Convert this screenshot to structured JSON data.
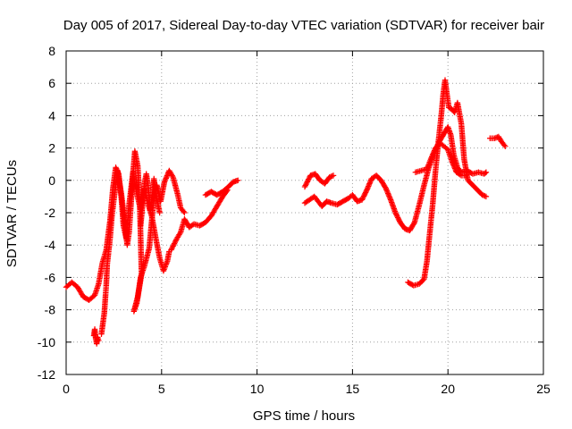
{
  "chart_data": {
    "type": "scatter",
    "title": "Day 005 of 2017, Sidereal Day-to-day VTEC variation (SDTVAR) for receiver bair",
    "xlabel": "GPS time / hours",
    "ylabel": "SDTVAR / TECUs",
    "xlim": [
      0,
      25
    ],
    "ylim": [
      -12,
      8
    ],
    "xticks": [
      0,
      5,
      10,
      15,
      20,
      25
    ],
    "yticks": [
      -12,
      -10,
      -8,
      -6,
      -4,
      -2,
      0,
      2,
      4,
      6,
      8
    ],
    "grid": true,
    "marker": "plus",
    "color": "#ff0000",
    "segments": [
      [
        [
          0.0,
          -6.6
        ],
        [
          0.3,
          -6.3
        ],
        [
          0.6,
          -6.6
        ],
        [
          0.9,
          -7.2
        ],
        [
          1.2,
          -7.4
        ],
        [
          1.5,
          -7.1
        ],
        [
          1.7,
          -6.4
        ],
        [
          1.9,
          -5.1
        ],
        [
          2.1,
          -4.3
        ],
        [
          2.3,
          -2.5
        ],
        [
          2.45,
          -0.5
        ],
        [
          2.6,
          0.8
        ],
        [
          2.75,
          0.4
        ],
        [
          2.9,
          -1.2
        ],
        [
          3.0,
          -2.8
        ],
        [
          3.15,
          -3.6
        ],
        [
          3.3,
          -1.5
        ],
        [
          3.5,
          0.5
        ],
        [
          3.7,
          -0.8
        ],
        [
          3.9,
          -1.8
        ],
        [
          4.1,
          -0.5
        ],
        [
          4.3,
          -1.5
        ],
        [
          4.5,
          -2.3
        ],
        [
          4.7,
          -3.6
        ],
        [
          4.9,
          -4.8
        ],
        [
          5.1,
          -5.6
        ],
        [
          5.3,
          -5.0
        ],
        [
          5.4,
          -4.4
        ]
      ],
      [
        [
          1.45,
          -9.6
        ],
        [
          1.5,
          -9.2
        ],
        [
          1.55,
          -9.8
        ],
        [
          1.6,
          -10.1
        ],
        [
          1.65,
          -9.7
        ],
        [
          1.7,
          -9.9
        ]
      ],
      [
        [
          1.85,
          -9.5
        ],
        [
          2.0,
          -8.2
        ],
        [
          2.1,
          -6.5
        ],
        [
          2.15,
          -5.2
        ],
        [
          2.3,
          -3.6
        ],
        [
          2.4,
          -2.2
        ],
        [
          2.5,
          -1.2
        ],
        [
          2.7,
          0.6
        ],
        [
          2.9,
          -0.9
        ],
        [
          3.05,
          -2.4
        ],
        [
          3.2,
          -4.0
        ],
        [
          3.3,
          -3.2
        ],
        [
          3.4,
          -1.4
        ],
        [
          3.5,
          0.4
        ],
        [
          3.6,
          1.8
        ],
        [
          3.75,
          0.9
        ],
        [
          3.85,
          -1.3
        ],
        [
          3.9,
          -3.4
        ],
        [
          3.95,
          -5.8
        ],
        [
          3.7,
          -7.6
        ],
        [
          3.55,
          -8.1
        ],
        [
          3.75,
          -7.2
        ],
        [
          3.9,
          -6.0
        ],
        [
          4.1,
          -5.3
        ],
        [
          4.35,
          -4.2
        ],
        [
          4.5,
          -2.3
        ],
        [
          4.6,
          -1.0
        ],
        [
          4.75,
          -0.3
        ],
        [
          4.95,
          -1.3
        ],
        [
          5.15,
          -0.1
        ],
        [
          5.4,
          0.6
        ],
        [
          5.6,
          0.2
        ],
        [
          5.85,
          -0.9
        ],
        [
          6.0,
          -1.7
        ],
        [
          6.2,
          -2.0
        ]
      ],
      [
        [
          3.9,
          -2.8
        ],
        [
          4.0,
          -1.6
        ],
        [
          4.1,
          -0.2
        ],
        [
          4.2,
          0.4
        ],
        [
          4.3,
          -0.4
        ],
        [
          4.4,
          -1.8
        ],
        [
          4.5,
          -1.2
        ],
        [
          4.6,
          0.1
        ],
        [
          4.7,
          -0.9
        ],
        [
          4.9,
          -2.0
        ]
      ],
      [
        [
          5.5,
          -4.3
        ],
        [
          5.8,
          -3.6
        ],
        [
          6.0,
          -3.2
        ],
        [
          6.2,
          -2.4
        ],
        [
          6.45,
          -2.9
        ],
        [
          6.7,
          -2.7
        ],
        [
          7.0,
          -2.8
        ],
        [
          7.3,
          -2.6
        ],
        [
          7.6,
          -2.2
        ],
        [
          7.9,
          -1.6
        ],
        [
          8.2,
          -1.0
        ],
        [
          8.45,
          -0.6
        ]
      ],
      [
        [
          7.3,
          -0.9
        ],
        [
          7.6,
          -0.7
        ],
        [
          7.9,
          -0.9
        ],
        [
          8.2,
          -0.7
        ],
        [
          8.5,
          -0.4
        ],
        [
          8.75,
          -0.1
        ],
        [
          9.0,
          0.0
        ]
      ],
      [
        [
          12.5,
          -1.4
        ],
        [
          12.75,
          -1.2
        ],
        [
          13.0,
          -1.0
        ],
        [
          13.2,
          -1.3
        ],
        [
          13.4,
          -1.6
        ],
        [
          13.65,
          -1.3
        ],
        [
          13.9,
          -1.4
        ],
        [
          14.2,
          -1.5
        ],
        [
          14.5,
          -1.3
        ],
        [
          14.8,
          -1.1
        ],
        [
          15.0,
          -0.9
        ],
        [
          15.25,
          -1.3
        ],
        [
          15.5,
          -1.2
        ],
        [
          15.75,
          -0.6
        ],
        [
          16.0,
          0.1
        ],
        [
          16.25,
          0.3
        ],
        [
          16.5,
          0.0
        ],
        [
          16.75,
          -0.5
        ],
        [
          17.0,
          -1.2
        ],
        [
          17.25,
          -2.0
        ],
        [
          17.5,
          -2.6
        ],
        [
          17.75,
          -3.0
        ],
        [
          18.0,
          -3.1
        ],
        [
          18.25,
          -2.6
        ],
        [
          18.5,
          -1.5
        ],
        [
          18.75,
          -0.3
        ],
        [
          19.0,
          0.8
        ],
        [
          19.25,
          1.6
        ],
        [
          19.5,
          2.3
        ],
        [
          19.75,
          2.8
        ],
        [
          20.0,
          3.3
        ],
        [
          20.15,
          2.8
        ],
        [
          20.3,
          1.6
        ],
        [
          20.5,
          0.8
        ],
        [
          20.7,
          0.5
        ],
        [
          21.0,
          0.6
        ],
        [
          21.3,
          0.4
        ],
        [
          21.6,
          0.5
        ],
        [
          21.9,
          0.4
        ],
        [
          22.0,
          0.5
        ]
      ],
      [
        [
          12.5,
          -0.4
        ],
        [
          12.8,
          0.3
        ],
        [
          13.05,
          0.4
        ],
        [
          13.3,
          0.0
        ],
        [
          13.55,
          -0.2
        ],
        [
          13.8,
          0.2
        ],
        [
          14.0,
          0.3
        ]
      ],
      [
        [
          17.9,
          -6.3
        ],
        [
          18.2,
          -6.5
        ],
        [
          18.5,
          -6.4
        ],
        [
          18.75,
          -6.1
        ],
        [
          18.9,
          -5.0
        ],
        [
          19.0,
          -3.8
        ],
        [
          19.2,
          -1.5
        ],
        [
          19.35,
          0.6
        ],
        [
          19.5,
          2.4
        ],
        [
          19.65,
          4.0
        ],
        [
          19.75,
          5.3
        ],
        [
          19.85,
          6.2
        ],
        [
          19.95,
          5.3
        ],
        [
          20.05,
          4.5
        ],
        [
          20.2,
          4.4
        ],
        [
          20.35,
          4.2
        ],
        [
          20.5,
          4.8
        ],
        [
          20.7,
          3.5
        ],
        [
          20.85,
          1.3
        ],
        [
          21.05,
          0.0
        ],
        [
          21.3,
          -0.3
        ],
        [
          21.55,
          -0.6
        ],
        [
          21.8,
          -0.9
        ],
        [
          22.0,
          -1.0
        ]
      ],
      [
        [
          18.3,
          0.5
        ],
        [
          18.6,
          0.6
        ],
        [
          18.9,
          0.7
        ],
        [
          19.1,
          1.3
        ],
        [
          19.35,
          2.0
        ],
        [
          19.6,
          2.3
        ],
        [
          19.8,
          2.1
        ],
        [
          20.0,
          1.9
        ],
        [
          20.2,
          1.2
        ],
        [
          20.45,
          0.5
        ],
        [
          20.7,
          0.3
        ],
        [
          20.95,
          0.3
        ]
      ],
      [
        [
          22.2,
          2.6
        ],
        [
          22.45,
          2.6
        ],
        [
          22.65,
          2.7
        ],
        [
          22.8,
          2.4
        ],
        [
          23.0,
          2.1
        ]
      ]
    ]
  }
}
